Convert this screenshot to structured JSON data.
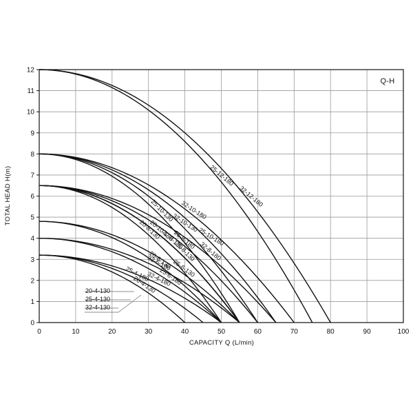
{
  "chart_data": {
    "type": "line",
    "title": "Q-H",
    "xlabel": "CAPACITY Q (L/min)",
    "ylabel": "TOTAL HEAD H(m)",
    "xlim": [
      0,
      100
    ],
    "ylim": [
      0,
      12
    ],
    "x_ticks": [
      "0",
      "10",
      "20",
      "30",
      "40",
      "50",
      "60",
      "70",
      "80",
      "90",
      "100"
    ],
    "y_ticks": [
      "0",
      "1",
      "2",
      "3",
      "4",
      "5",
      "6",
      "7",
      "8",
      "9",
      "10",
      "11",
      "12"
    ],
    "grid": true,
    "legend_placement": "lower-left",
    "legend_entries": [
      "20-4-130",
      "25-4-130",
      "32-4-130"
    ],
    "series": [
      {
        "name": "32-12-180",
        "shutoff_head": 12,
        "max_capacity": 80
      },
      {
        "name": "25-12-180",
        "shutoff_head": 12,
        "max_capacity": 75
      },
      {
        "name": "32-10-180",
        "shutoff_head": 8,
        "max_capacity": 70
      },
      {
        "name": "25-10-180",
        "shutoff_head": 8,
        "max_capacity": 65
      },
      {
        "name": "32-10-130",
        "shutoff_head": 8,
        "max_capacity": 60
      },
      {
        "name": "25-10-130",
        "shutoff_head": 8,
        "max_capacity": 55
      },
      {
        "name": "32-8-180",
        "shutoff_head": 6.5,
        "max_capacity": 65
      },
      {
        "name": "25-8-180",
        "shutoff_head": 6.5,
        "max_capacity": 60
      },
      {
        "name": "20-10-130",
        "shutoff_head": 6.5,
        "max_capacity": 55
      },
      {
        "name": "25-8-130",
        "shutoff_head": 6.5,
        "max_capacity": 55
      },
      {
        "name": "32-8-130",
        "shutoff_head": 6.5,
        "max_capacity": 55
      },
      {
        "name": "20-8-130",
        "shutoff_head": 6.5,
        "max_capacity": 50
      },
      {
        "name": "25-6-130",
        "shutoff_head": 4.8,
        "max_capacity": 55
      },
      {
        "name": "20-6-130",
        "shutoff_head": 4.8,
        "max_capacity": 50
      },
      {
        "name": "32-6-180",
        "shutoff_head": 4,
        "max_capacity": 55
      },
      {
        "name": "25-6-180",
        "shutoff_head": 4,
        "max_capacity": 50
      },
      {
        "name": "32-4-180",
        "shutoff_head": 3.2,
        "max_capacity": 50
      },
      {
        "name": "25-4-180",
        "shutoff_head": 3.2,
        "max_capacity": 45
      },
      {
        "name": "20-4-130",
        "shutoff_head": 3.2,
        "max_capacity": 40
      }
    ]
  }
}
